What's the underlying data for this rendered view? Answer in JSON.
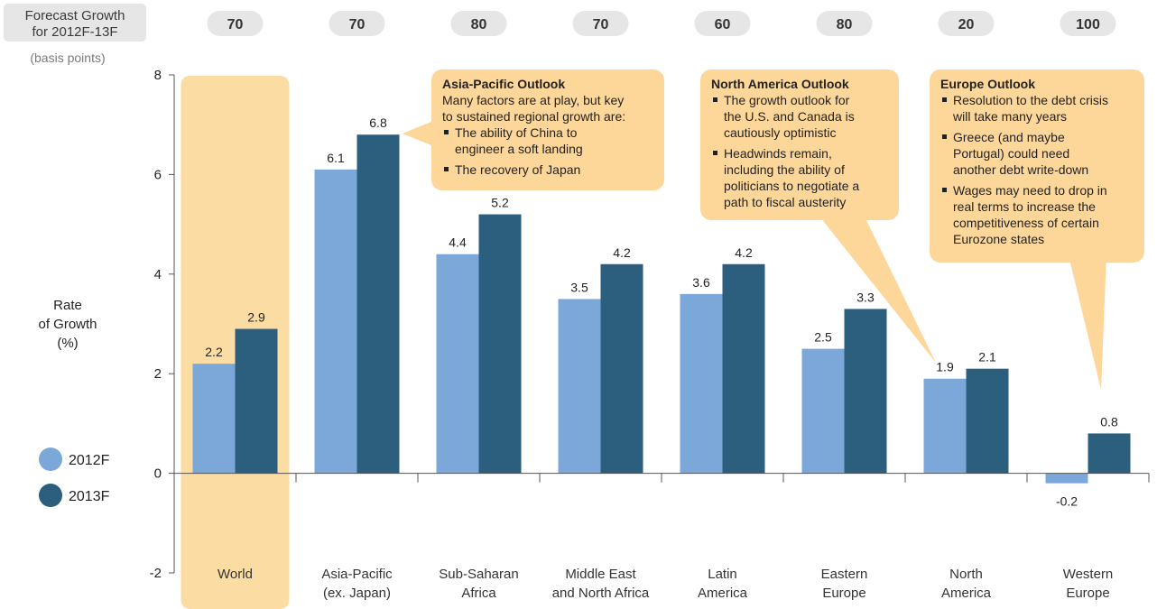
{
  "header": {
    "forecast_label_line1": "Forecast Growth",
    "forecast_label_line2": "for 2012F-13F",
    "unit_note": "(basis points)",
    "pills": [
      "70",
      "70",
      "80",
      "70",
      "60",
      "80",
      "20",
      "100"
    ]
  },
  "y_axis_title": [
    "Rate",
    "of Growth",
    "(%)"
  ],
  "chart_data": {
    "type": "bar",
    "categories": [
      [
        "World"
      ],
      [
        "Asia-Pacific",
        "(ex. Japan)"
      ],
      [
        "Sub-Saharan",
        "Africa"
      ],
      [
        "Middle East",
        "and North Africa"
      ],
      [
        "Latin",
        "America"
      ],
      [
        "Eastern",
        "Europe"
      ],
      [
        "North",
        "America"
      ],
      [
        "Western",
        "Europe"
      ]
    ],
    "series": [
      {
        "name": "2012F",
        "values": [
          2.2,
          6.1,
          4.4,
          3.5,
          3.6,
          2.5,
          1.9,
          -0.2
        ]
      },
      {
        "name": "2013F",
        "values": [
          2.9,
          6.8,
          5.2,
          4.2,
          4.2,
          3.3,
          2.1,
          0.8
        ]
      }
    ],
    "value_labels": {
      "2012F": [
        "2.2",
        "6.1",
        "4.4",
        "3.5",
        "3.6",
        "2.5",
        "1.9",
        "-0.2"
      ],
      "2013F": [
        "2.9",
        "6.8",
        "5.2",
        "4.2",
        "4.2",
        "3.3",
        "2.1",
        "0.8"
      ]
    },
    "ylim": [
      -2,
      8
    ],
    "yticks": [
      "-2",
      "0",
      "2",
      "4",
      "6",
      "8"
    ],
    "ytick_values": [
      -2,
      0,
      2,
      4,
      6,
      8
    ],
    "legend_position": "left",
    "highlighted_category": "World",
    "grid": false
  },
  "colors": {
    "series_2012F": "#7ca8d9",
    "series_2013F": "#2c5f7e",
    "highlight": "#fbdca2",
    "callout": "#fdd79a",
    "pill": "#e6e6e6",
    "negative_label": "#c0202e"
  },
  "callouts": [
    {
      "id": "asia",
      "title": "Asia-Pacific Outlook",
      "intro": [
        "Many factors are at play, but key",
        "to sustained regional growth are:"
      ],
      "bullets": [
        [
          "The ability of China to",
          "engineer a soft landing"
        ],
        [
          "The recovery of Japan"
        ]
      ]
    },
    {
      "id": "na",
      "title": "North America Outlook",
      "intro": [],
      "bullets": [
        [
          "The growth outlook for",
          "the U.S. and Canada is",
          "cautiously optimistic"
        ],
        [
          "Headwinds remain,",
          "including the ability of",
          "politicians to negotiate a",
          "path to fiscal austerity"
        ]
      ]
    },
    {
      "id": "eu",
      "title": "Europe Outlook",
      "intro": [],
      "bullets": [
        [
          "Resolution to the debt crisis",
          "will take many years"
        ],
        [
          "Greece (and maybe",
          "Portugal) could need",
          "another debt write-down"
        ],
        [
          "Wages may need to drop in",
          "real terms to increase the",
          "competitiveness of certain",
          "Eurozone states"
        ]
      ]
    }
  ]
}
